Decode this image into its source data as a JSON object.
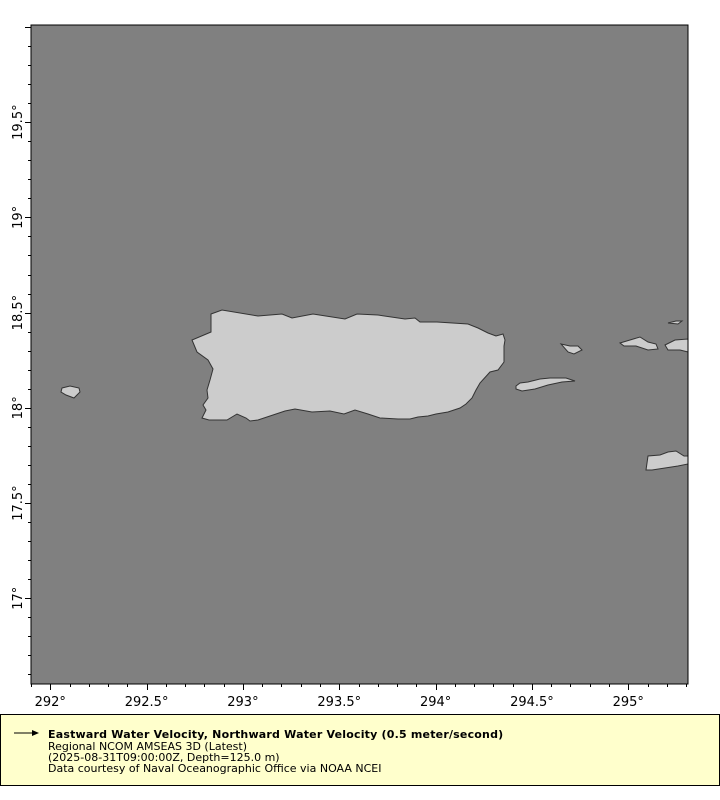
{
  "map": {
    "lon_ticks": [
      "292°",
      "292.5°",
      "293°",
      "293.5°",
      "294°",
      "294.5°",
      "295°"
    ],
    "lon_values": [
      292,
      292.5,
      293,
      293.5,
      294,
      294.5,
      295
    ],
    "lat_ticks": [
      "17°",
      "17.5°",
      "18°",
      "18.5°",
      "19°",
      "19.5°"
    ],
    "lat_values": [
      17,
      17.5,
      18,
      18.5,
      19,
      19.5
    ],
    "lon_range": [
      291.9,
      295.31
    ],
    "lat_range": [
      16.55,
      20.01
    ],
    "colors": {
      "ocean": "#808080",
      "land": "#cccccc",
      "coast": "#333333",
      "legend_bg": "#ffffcc"
    }
  },
  "legend": {
    "icon": "vector-arrow-icon",
    "title": "Eastward Water Velocity, Northward Water Velocity (0.5 meter/second)",
    "dataset": "Regional NCOM AMSEAS 3D (Latest)",
    "constraints": "(2025-08-31T09:00:00Z, Depth=125.0 m)",
    "credit": "Data courtesy of Naval Oceanographic Office via NOAA NCEI"
  }
}
